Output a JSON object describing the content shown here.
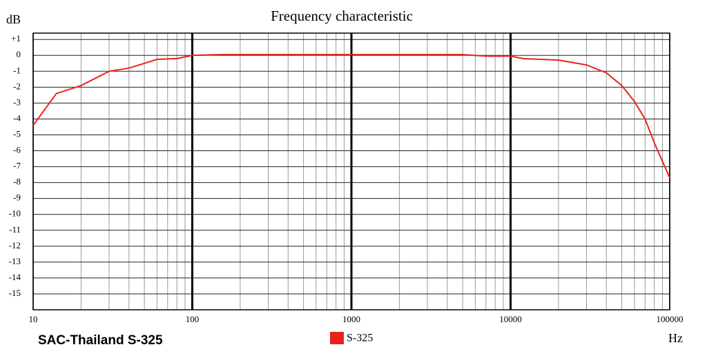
{
  "chart_data": {
    "type": "line",
    "title": "Frequency characteristic",
    "y_label": "dB",
    "x_label": "Hz",
    "caption": "SAC-Thailand S-325",
    "x": [
      10,
      14,
      20,
      30,
      40,
      50,
      60,
      80,
      100,
      150,
      1000,
      5000,
      7000,
      10000,
      12000,
      20000,
      30000,
      40000,
      50000,
      60000,
      70000,
      80000,
      100000
    ],
    "series": [
      {
        "name": "S-325",
        "color": "#e8231a",
        "values": [
          -4.4,
          -2.4,
          -1.9,
          -1.0,
          -0.8,
          -0.5,
          -0.25,
          -0.2,
          0,
          0.05,
          0.05,
          0.05,
          -0.05,
          -0.05,
          -0.2,
          -0.3,
          -0.6,
          -1.1,
          -1.9,
          -2.9,
          -4.0,
          -5.5,
          -7.7
        ]
      }
    ],
    "x_log": true,
    "minor_grid": true,
    "grid": true,
    "xlim": [
      10,
      100000
    ],
    "xticks": [
      10,
      100,
      1000,
      10000,
      100000
    ],
    "ylim": [
      -16,
      1.4
    ],
    "yticks": [
      {
        "value": 1,
        "label": "+1"
      },
      0,
      -1,
      -2,
      -3,
      -4,
      -5,
      -6,
      -7,
      -8,
      -9,
      -10,
      -11,
      -12,
      -13,
      -14,
      -15
    ]
  }
}
